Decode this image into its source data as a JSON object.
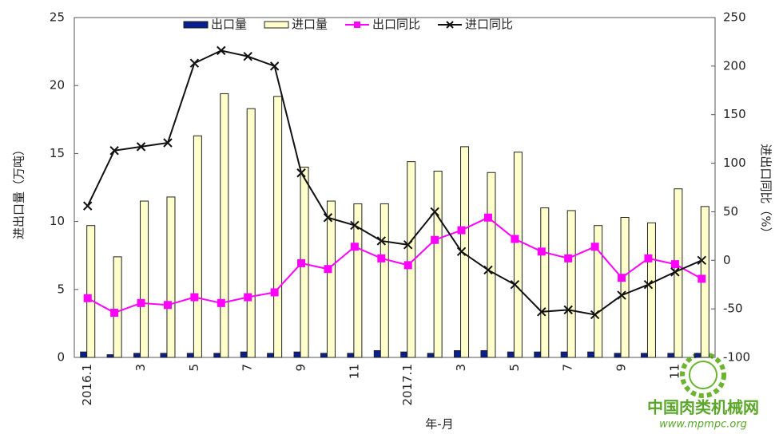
{
  "chart_data": {
    "type": "bar",
    "x_label": "年-月",
    "y_label": "进出口量（万吨）",
    "y2_label": "进出口同比（%）",
    "categories": [
      "2016.1",
      null,
      "3",
      null,
      "5",
      null,
      "7",
      null,
      "9",
      null,
      "11",
      null,
      "2017.1",
      null,
      "3",
      null,
      "5",
      null,
      "7",
      null,
      "9",
      null,
      "11",
      null
    ],
    "series": [
      {
        "name": "出口量",
        "color": "#0a1f8f",
        "values": [
          0.4,
          0.2,
          0.3,
          0.3,
          0.3,
          0.3,
          0.4,
          0.3,
          0.4,
          0.3,
          0.3,
          0.5,
          0.4,
          0.3,
          0.5,
          0.5,
          0.4,
          0.4,
          0.4,
          0.4,
          0.3,
          0.3,
          0.3,
          0.3
        ]
      },
      {
        "name": "进口量",
        "color": "#ffffcc",
        "values": [
          9.7,
          7.4,
          11.5,
          11.8,
          16.3,
          19.4,
          18.3,
          19.2,
          14.0,
          11.5,
          11.3,
          11.3,
          14.4,
          13.7,
          15.5,
          13.6,
          15.1,
          11.0,
          10.8,
          9.7,
          10.3,
          9.9,
          12.4,
          11.1
        ]
      },
      {
        "name": "出口同比",
        "color": "#ff00ff",
        "axis": "y2",
        "marker": "square",
        "values": [
          -39,
          -54,
          -44,
          -46,
          -38,
          -44,
          -38,
          -33,
          -3,
          -9,
          14,
          2,
          -5,
          21,
          31,
          44,
          22,
          9,
          2,
          14,
          -18,
          2,
          -4,
          -19
        ]
      },
      {
        "name": "进口同比",
        "color": "#111111",
        "axis": "y2",
        "marker": "x",
        "values": [
          56,
          113,
          117,
          121,
          203,
          216,
          210,
          200,
          90,
          44,
          36,
          20,
          16,
          50,
          9,
          -10,
          -25,
          -53,
          -51,
          -56,
          -36,
          -25,
          -12,
          0
        ]
      }
    ],
    "ylim": [
      0,
      25
    ],
    "yticks": [
      0,
      5,
      10,
      15,
      20,
      25
    ],
    "y2lim": [
      -100,
      250
    ],
    "y2ticks": [
      -100,
      -50,
      0,
      50,
      100,
      150,
      200,
      250
    ],
    "legend": "top",
    "watermark": {
      "title": "中国肉类机械网",
      "url": "www.mpmpc.org"
    }
  }
}
